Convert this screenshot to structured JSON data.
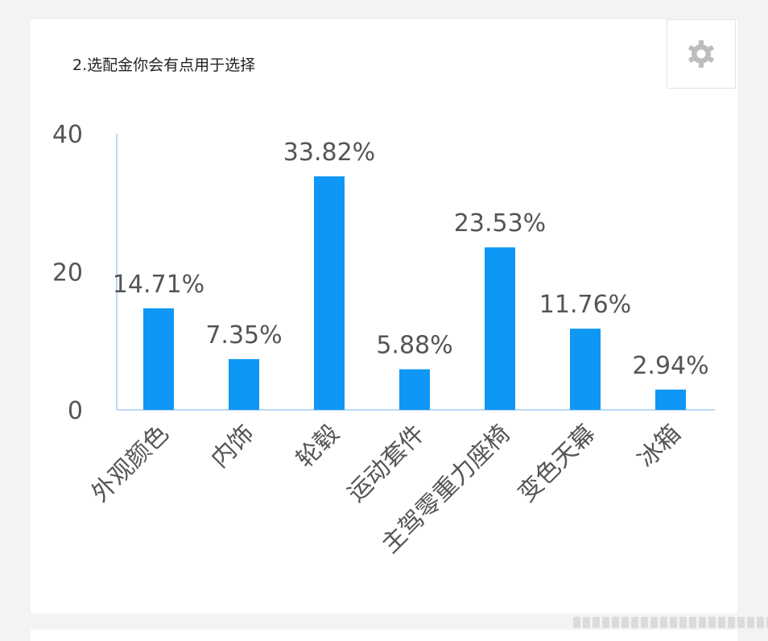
{
  "card": {
    "title": "2.选配金你会有点用于选择"
  },
  "settings": {
    "icon": "gear-icon"
  },
  "colors": {
    "bar": "#0f97f5",
    "axis": "#b9d8f6",
    "text": "#555555",
    "background": "#ffffff"
  },
  "chart_data": {
    "type": "bar",
    "title": "2.选配金你会有点用于选择",
    "categories": [
      "外观颜色",
      "内饰",
      "轮毂",
      "运动套件",
      "主驾零重力座椅",
      "变色天幕",
      "冰箱"
    ],
    "values": [
      14.71,
      7.35,
      33.82,
      5.88,
      23.53,
      11.76,
      2.94
    ],
    "value_labels": [
      "14.71%",
      "7.35%",
      "33.82%",
      "5.88%",
      "23.53%",
      "11.76%",
      "2.94%"
    ],
    "yticks": [
      "0",
      "20",
      "40"
    ],
    "ylim": [
      0,
      40
    ],
    "xlabel": "",
    "ylabel": "",
    "grid": false,
    "legend": "none"
  }
}
